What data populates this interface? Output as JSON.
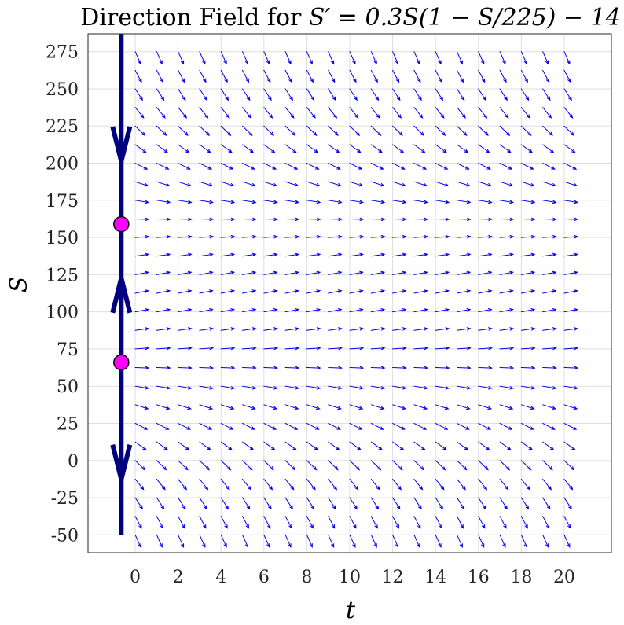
{
  "chart_data": {
    "type": "scatter",
    "kind": "direction-field",
    "title_text": "Direction Field for ",
    "title_eq": "S′ = 0.3S(1 − S/225) − 14",
    "equation": {
      "r": 0.3,
      "K": 225,
      "h": 14
    },
    "xlabel": "t",
    "ylabel": "S",
    "xlim": [
      -2.2,
      22.2
    ],
    "ylim": [
      -62,
      287
    ],
    "xticks": [
      0,
      2,
      4,
      6,
      8,
      10,
      12,
      14,
      16,
      18,
      20
    ],
    "yticks": [
      -50,
      -25,
      0,
      25,
      50,
      75,
      100,
      125,
      150,
      175,
      200,
      225,
      250,
      275
    ],
    "grid": true,
    "field": {
      "t_values": [
        0,
        1,
        2,
        3,
        4,
        5,
        6,
        7,
        8,
        9,
        10,
        11,
        12,
        13,
        14,
        15,
        16,
        17,
        18,
        19,
        20
      ],
      "s_min": -50,
      "s_max": 275,
      "s_step": 12.5
    },
    "phase_line": {
      "t": -0.65,
      "s_range": [
        -50,
        287
      ],
      "equilibria": [
        66,
        159
      ],
      "flow": [
        {
          "s": 0,
          "direction": "down"
        },
        {
          "s": 110,
          "direction": "up"
        },
        {
          "s": 214,
          "direction": "down"
        }
      ]
    },
    "colors": {
      "field": "#0000ee",
      "phase_line": "#000080",
      "equilibrium_fill": "#ff00ff",
      "equilibrium_edge": "#000000",
      "grid": "#dfdfdf",
      "axes": "#262626"
    }
  }
}
